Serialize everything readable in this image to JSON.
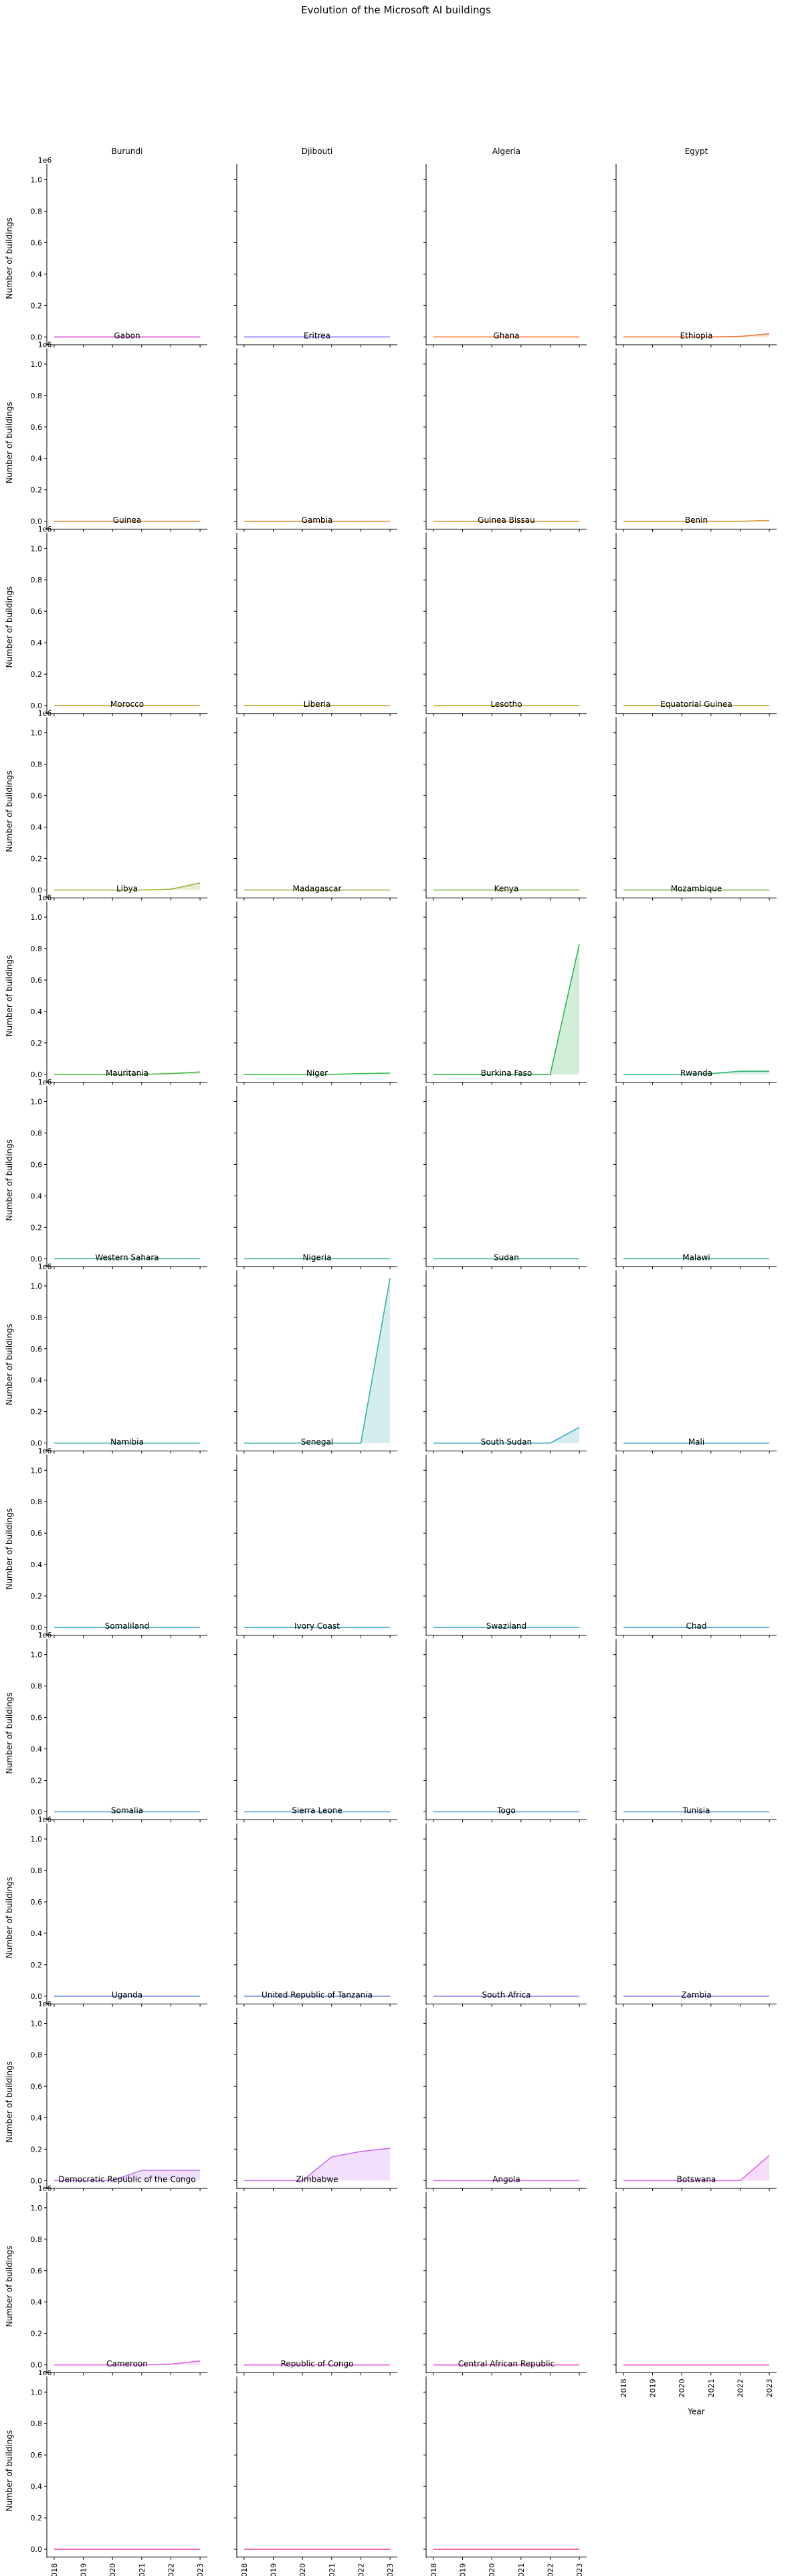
{
  "chart_data": {
    "type": "line",
    "title": "Evolution of the Microsoft AI buildings",
    "xlabel": "Year",
    "ylabel": "Number of buildings",
    "offset_label": "1e6",
    "x": [
      2018,
      2019,
      2020,
      2021,
      2022,
      2023
    ],
    "xticks": [
      "2018",
      "2019",
      "2020",
      "2021",
      "2022",
      "2023"
    ],
    "ylim": [
      -50000,
      1100000
    ],
    "yticks": [
      "0.0",
      "0.2",
      "0.4",
      "0.6",
      "0.8",
      "1.0"
    ],
    "ytick_values": [
      0,
      200000,
      400000,
      600000,
      800000,
      1000000
    ],
    "fill_under": true,
    "legend": "none",
    "grid": false,
    "panels": [
      {
        "name": "Burundi",
        "color": "#e052d6",
        "values": [
          0,
          0,
          0,
          0,
          0,
          0
        ]
      },
      {
        "name": "Djibouti",
        "color": "#8a7cf2",
        "values": [
          0,
          0,
          0,
          0,
          0,
          0
        ]
      },
      {
        "name": "Algeria",
        "color": "#f77e3c",
        "values": [
          0,
          0,
          0,
          0,
          0,
          0
        ]
      },
      {
        "name": "Egypt",
        "color": "#f27a3a",
        "values": [
          0,
          0,
          0,
          0,
          3000,
          20000
        ]
      },
      {
        "name": "Gabon",
        "color": "#f08c36",
        "values": [
          0,
          0,
          0,
          0,
          0,
          0
        ]
      },
      {
        "name": "Eritrea",
        "color": "#ec8f30",
        "values": [
          0,
          0,
          0,
          0,
          0,
          0
        ]
      },
      {
        "name": "Ghana",
        "color": "#e4962c",
        "values": [
          0,
          0,
          0,
          0,
          0,
          0
        ]
      },
      {
        "name": "Ethiopia",
        "color": "#da9a28",
        "values": [
          0,
          0,
          0,
          0,
          0,
          5000
        ]
      },
      {
        "name": "Guinea",
        "color": "#cfa028",
        "values": [
          0,
          0,
          0,
          0,
          0,
          0
        ]
      },
      {
        "name": "Gambia",
        "color": "#c6a42a",
        "values": [
          0,
          0,
          0,
          0,
          0,
          0
        ]
      },
      {
        "name": "Guinea Bissau",
        "color": "#bca82c",
        "values": [
          0,
          0,
          0,
          0,
          0,
          0
        ]
      },
      {
        "name": "Benin",
        "color": "#b0aa30",
        "values": [
          0,
          0,
          0,
          0,
          0,
          0
        ]
      },
      {
        "name": "Morocco",
        "color": "#a3ae30",
        "values": [
          0,
          0,
          0,
          0,
          5000,
          45000
        ]
      },
      {
        "name": "Liberia",
        "color": "#95b032",
        "values": [
          0,
          0,
          0,
          0,
          0,
          0
        ]
      },
      {
        "name": "Lesotho",
        "color": "#84b436",
        "values": [
          0,
          0,
          0,
          0,
          0,
          0
        ]
      },
      {
        "name": "Equatorial Guinea",
        "color": "#70b63a",
        "values": [
          0,
          0,
          0,
          0,
          0,
          0
        ]
      },
      {
        "name": "Libya",
        "color": "#4db83e",
        "values": [
          0,
          0,
          0,
          0,
          5000,
          15000
        ]
      },
      {
        "name": "Madagascar",
        "color": "#36ba4a",
        "values": [
          0,
          0,
          0,
          0,
          5000,
          8000
        ]
      },
      {
        "name": "Kenya",
        "color": "#2eb64e",
        "values": [
          0,
          0,
          0,
          0,
          0,
          830000
        ]
      },
      {
        "name": "Mozambique",
        "color": "#32b878",
        "values": [
          0,
          0,
          0,
          5000,
          20000,
          20000
        ]
      },
      {
        "name": "Mauritania",
        "color": "#34b88a",
        "values": [
          0,
          0,
          0,
          0,
          0,
          0
        ]
      },
      {
        "name": "Niger",
        "color": "#34b694",
        "values": [
          0,
          0,
          0,
          0,
          0,
          0
        ]
      },
      {
        "name": "Burkina Faso",
        "color": "#36b6a0",
        "values": [
          0,
          0,
          0,
          0,
          0,
          0
        ]
      },
      {
        "name": "Rwanda",
        "color": "#36b4a8",
        "values": [
          0,
          0,
          0,
          0,
          0,
          0
        ]
      },
      {
        "name": "Western Sahara",
        "color": "#36b2b0",
        "values": [
          0,
          0,
          0,
          0,
          0,
          0
        ]
      },
      {
        "name": "Nigeria",
        "color": "#38b0aa",
        "values": [
          0,
          0,
          0,
          0,
          0,
          1050000
        ]
      },
      {
        "name": "Sudan",
        "color": "#38acbe",
        "values": [
          0,
          0,
          0,
          0,
          0,
          100000
        ]
      },
      {
        "name": "Malawi",
        "color": "#3aaac2",
        "values": [
          0,
          0,
          0,
          0,
          0,
          0
        ]
      },
      {
        "name": "Namibia",
        "color": "#3aa8c4",
        "values": [
          0,
          0,
          0,
          0,
          0,
          0
        ]
      },
      {
        "name": "Senegal",
        "color": "#3ca6c8",
        "values": [
          0,
          0,
          0,
          0,
          0,
          0
        ]
      },
      {
        "name": "South Sudan",
        "color": "#3ea4cc",
        "values": [
          0,
          0,
          0,
          0,
          0,
          0
        ]
      },
      {
        "name": "Mali",
        "color": "#40a2d0",
        "values": [
          0,
          0,
          0,
          0,
          0,
          0
        ]
      },
      {
        "name": "Somaliland",
        "color": "#44a0d4",
        "values": [
          0,
          0,
          0,
          0,
          0,
          0
        ]
      },
      {
        "name": "Ivory Coast",
        "color": "#489cd8",
        "values": [
          0,
          0,
          0,
          0,
          0,
          0
        ]
      },
      {
        "name": "Swaziland",
        "color": "#4e98dc",
        "values": [
          0,
          0,
          0,
          0,
          0,
          0
        ]
      },
      {
        "name": "Chad",
        "color": "#5692e0",
        "values": [
          0,
          0,
          0,
          0,
          0,
          0
        ]
      },
      {
        "name": "Somalia",
        "color": "#6a8ce6",
        "values": [
          0,
          0,
          0,
          0,
          0,
          0
        ]
      },
      {
        "name": "Sierra Leone",
        "color": "#7a86ea",
        "values": [
          0,
          0,
          0,
          0,
          0,
          0
        ]
      },
      {
        "name": "Togo",
        "color": "#8c80ee",
        "values": [
          0,
          0,
          0,
          0,
          0,
          0
        ]
      },
      {
        "name": "Tunisia",
        "color": "#9c7af0",
        "values": [
          0,
          0,
          0,
          0,
          0,
          0
        ]
      },
      {
        "name": "Uganda",
        "color": "#b874f2",
        "values": [
          0,
          0,
          0,
          65000,
          65000,
          65000
        ]
      },
      {
        "name": "United Republic of Tanzania",
        "color": "#c86ef0",
        "values": [
          0,
          0,
          0,
          150000,
          185000,
          205000
        ]
      },
      {
        "name": "South Africa",
        "color": "#d66aee",
        "values": [
          0,
          0,
          0,
          0,
          0,
          0
        ]
      },
      {
        "name": "Zambia",
        "color": "#e064ea",
        "values": [
          0,
          0,
          0,
          0,
          0,
          160000
        ]
      },
      {
        "name": "Democratic Republic of the Congo",
        "color": "#e860e0",
        "values": [
          0,
          0,
          0,
          0,
          5000,
          25000
        ]
      },
      {
        "name": "Zimbabwe",
        "color": "#ee5cd4",
        "values": [
          0,
          0,
          0,
          0,
          0,
          0
        ]
      },
      {
        "name": "Angola",
        "color": "#f05ac8",
        "values": [
          0,
          0,
          0,
          0,
          0,
          0
        ]
      },
      {
        "name": "Botswana",
        "color": "#f058bc",
        "values": [
          0,
          0,
          0,
          0,
          0,
          0
        ]
      },
      {
        "name": "Cameroon",
        "color": "#f056b2",
        "values": [
          0,
          0,
          0,
          0,
          0,
          0
        ]
      },
      {
        "name": "Republic of Congo",
        "color": "#f054a8",
        "values": [
          0,
          0,
          0,
          0,
          0,
          0
        ]
      },
      {
        "name": "Central African Republic",
        "color": "#f0529e",
        "values": [
          0,
          0,
          0,
          0,
          0,
          0
        ]
      }
    ]
  }
}
